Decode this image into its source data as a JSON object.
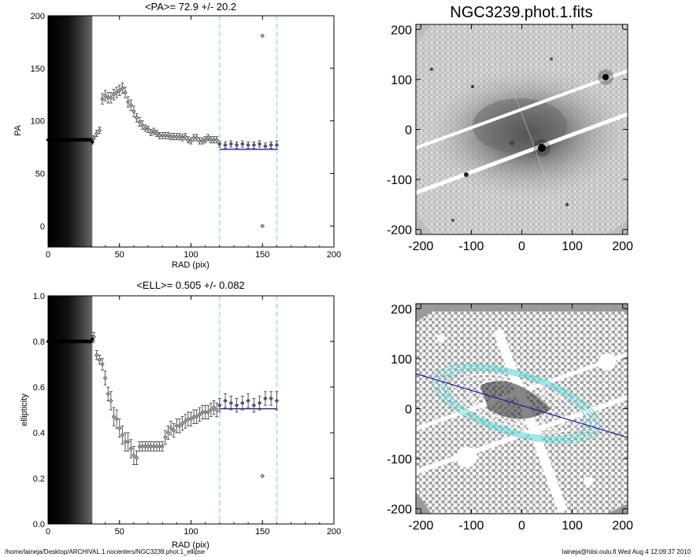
{
  "footer": {
    "path": "/home/laineja/Desktop/ARCHIVAL.1.nocenters/NGC3239.phot.1_ellipse",
    "stamp": "laineja@hiisi.oulu.fi  Wed Aug  4 12:09:37 2010"
  },
  "colors": {
    "axis": "#000000",
    "marker": "#333333",
    "fit_line": "#1c1ca8",
    "dashed": "#8fe3e3",
    "contour_outer": "#5fd6d6",
    "contour_inner": "#ffffff"
  },
  "chart_data": [
    {
      "type": "scatter",
      "title": "<PA>=  72.9 +/-  20.2",
      "xlabel": "RAD (pix)",
      "ylabel": "PA",
      "xlim": [
        0,
        200
      ],
      "ylim": [
        -20,
        200
      ],
      "xticks": [
        "0",
        "50",
        "100",
        "150",
        "200"
      ],
      "yticks": [
        "0",
        "50",
        "100",
        "150",
        "200"
      ],
      "inner_region_x": [
        0,
        31
      ],
      "vlines": [
        120,
        160
      ],
      "hline": {
        "value": 72.9,
        "x": [
          120,
          160
        ]
      },
      "series": [
        {
          "x": [
            0,
            1,
            2,
            3,
            4,
            5,
            6,
            7,
            8,
            9,
            10,
            11,
            12,
            13,
            14,
            15,
            16,
            17,
            18,
            19,
            20,
            21,
            22,
            23,
            24,
            25,
            26,
            27,
            28,
            29,
            30,
            31,
            32,
            34,
            36,
            38,
            40,
            42,
            44,
            46,
            48,
            50,
            52,
            54,
            56,
            58,
            60,
            62,
            64,
            66,
            68,
            70,
            72,
            74,
            76,
            78,
            80,
            82,
            84,
            86,
            88,
            90,
            92,
            94,
            96,
            98,
            100,
            102,
            104,
            106,
            108,
            110,
            112,
            114,
            116,
            118,
            120,
            124,
            128,
            132,
            136,
            140,
            144,
            148,
            152,
            156,
            160
          ],
          "y": [
            82,
            82,
            82,
            82,
            82,
            82,
            82,
            82,
            82,
            82,
            82,
            82,
            82,
            82,
            82,
            82,
            82,
            82,
            82,
            82,
            82,
            82,
            82,
            82,
            82,
            82,
            82,
            82,
            82,
            82,
            82,
            80,
            84,
            88,
            91,
            121,
            124,
            122,
            122,
            125,
            127,
            129,
            131,
            127,
            118,
            115,
            109,
            103,
            99,
            96,
            93,
            92,
            89,
            90,
            88,
            86,
            86,
            86,
            86,
            85,
            85,
            85,
            85,
            84,
            85,
            82,
            81,
            84,
            84,
            81,
            81,
            82,
            84,
            82,
            82,
            82,
            78,
            77,
            78,
            77,
            78,
            77,
            77,
            78,
            76,
            77,
            77
          ],
          "yerr": [
            0,
            0,
            0,
            0,
            0,
            0,
            0,
            0,
            0,
            0,
            0,
            0,
            0,
            0,
            0,
            0,
            0,
            0,
            0,
            0,
            0,
            0,
            0,
            0,
            0,
            0,
            0,
            0,
            0,
            0,
            0,
            2,
            2,
            3,
            3,
            5,
            5,
            5,
            5,
            5,
            5,
            5,
            5,
            5,
            5,
            5,
            5,
            4,
            4,
            4,
            3,
            3,
            3,
            3,
            3,
            3,
            3,
            3,
            3,
            3,
            3,
            3,
            3,
            3,
            3,
            3,
            3,
            3,
            3,
            3,
            3,
            3,
            3,
            3,
            3,
            3,
            3,
            3,
            3,
            3,
            3,
            3,
            3,
            3,
            3,
            3,
            4
          ]
        },
        {
          "x": [
            150,
            150
          ],
          "y": [
            181,
            0
          ],
          "yerr": [
            0,
            0
          ]
        }
      ]
    },
    {
      "type": "scatter",
      "title": "<ELL>= 0.505 +/-  0.082",
      "xlabel": "RAD (pix)",
      "ylabel": "ellipticity",
      "xlim": [
        0,
        200
      ],
      "ylim": [
        0,
        1.0
      ],
      "xticks": [
        "0",
        "50",
        "100",
        "150",
        "200"
      ],
      "yticks": [
        "0.0",
        "0.2",
        "0.4",
        "0.6",
        "0.8",
        "1.0"
      ],
      "inner_region_x": [
        0,
        31
      ],
      "vlines": [
        120,
        160
      ],
      "hline": {
        "value": 0.505,
        "x": [
          120,
          160
        ]
      },
      "series": [
        {
          "x": [
            0,
            1,
            2,
            3,
            4,
            5,
            6,
            7,
            8,
            9,
            10,
            11,
            12,
            13,
            14,
            15,
            16,
            17,
            18,
            19,
            20,
            21,
            22,
            23,
            24,
            25,
            26,
            27,
            28,
            29,
            30,
            31,
            32,
            34,
            36,
            38,
            40,
            42,
            44,
            46,
            48,
            50,
            52,
            54,
            56,
            58,
            60,
            62,
            64,
            66,
            68,
            70,
            72,
            74,
            76,
            78,
            80,
            82,
            84,
            86,
            88,
            90,
            92,
            94,
            96,
            98,
            100,
            102,
            104,
            106,
            108,
            110,
            112,
            114,
            116,
            118,
            120,
            124,
            128,
            132,
            136,
            140,
            144,
            148,
            152,
            156,
            160
          ],
          "y": [
            0.8,
            0.8,
            0.8,
            0.8,
            0.8,
            0.8,
            0.8,
            0.8,
            0.8,
            0.8,
            0.8,
            0.8,
            0.8,
            0.8,
            0.8,
            0.8,
            0.8,
            0.8,
            0.8,
            0.8,
            0.8,
            0.8,
            0.8,
            0.8,
            0.8,
            0.8,
            0.8,
            0.8,
            0.8,
            0.8,
            0.8,
            0.81,
            0.82,
            0.74,
            0.72,
            0.7,
            0.64,
            0.57,
            0.54,
            0.47,
            0.46,
            0.42,
            0.39,
            0.36,
            0.36,
            0.33,
            0.3,
            0.29,
            0.34,
            0.34,
            0.34,
            0.34,
            0.34,
            0.34,
            0.34,
            0.34,
            0.34,
            0.38,
            0.4,
            0.42,
            0.41,
            0.43,
            0.43,
            0.44,
            0.45,
            0.46,
            0.46,
            0.47,
            0.47,
            0.48,
            0.49,
            0.49,
            0.49,
            0.5,
            0.51,
            0.5,
            0.52,
            0.54,
            0.53,
            0.52,
            0.53,
            0.54,
            0.52,
            0.53,
            0.55,
            0.55,
            0.54
          ],
          "yerr": [
            0,
            0,
            0,
            0,
            0,
            0,
            0,
            0,
            0,
            0,
            0,
            0,
            0,
            0,
            0,
            0,
            0,
            0,
            0,
            0,
            0,
            0,
            0,
            0,
            0,
            0,
            0,
            0,
            0,
            0,
            0,
            0.015,
            0.02,
            0.02,
            0.02,
            0.025,
            0.03,
            0.03,
            0.04,
            0.04,
            0.04,
            0.04,
            0.04,
            0.04,
            0.04,
            0.04,
            0.04,
            0.03,
            0.02,
            0.02,
            0.02,
            0.02,
            0.02,
            0.02,
            0.02,
            0.02,
            0.02,
            0.03,
            0.03,
            0.03,
            0.03,
            0.03,
            0.03,
            0.03,
            0.03,
            0.03,
            0.03,
            0.03,
            0.03,
            0.03,
            0.03,
            0.03,
            0.03,
            0.03,
            0.03,
            0.03,
            0.03,
            0.03,
            0.03,
            0.03,
            0.03,
            0.03,
            0.03,
            0.03,
            0.03,
            0.03,
            0.04
          ]
        },
        {
          "x": [
            150
          ],
          "y": [
            0.21
          ],
          "yerr": [
            0
          ]
        }
      ]
    },
    {
      "type": "heatmap",
      "title": "NGC3239.phot.1.fits",
      "xlabel": "",
      "ylabel": "",
      "xlim": [
        -210,
        210
      ],
      "ylim": [
        -210,
        210
      ],
      "xticks": [
        "-200",
        "-100",
        "0",
        "100",
        "200"
      ],
      "yticks": [
        "-200",
        "-100",
        "0",
        "100",
        "200"
      ]
    },
    {
      "type": "heatmap",
      "title": "",
      "xlabel": "",
      "ylabel": "",
      "xlim": [
        -210,
        210
      ],
      "ylim": [
        -210,
        210
      ],
      "xticks": [
        "-200",
        "-100",
        "0",
        "100",
        "200"
      ],
      "yticks": [
        "-200",
        "-100",
        "0",
        "100",
        "200"
      ]
    }
  ]
}
